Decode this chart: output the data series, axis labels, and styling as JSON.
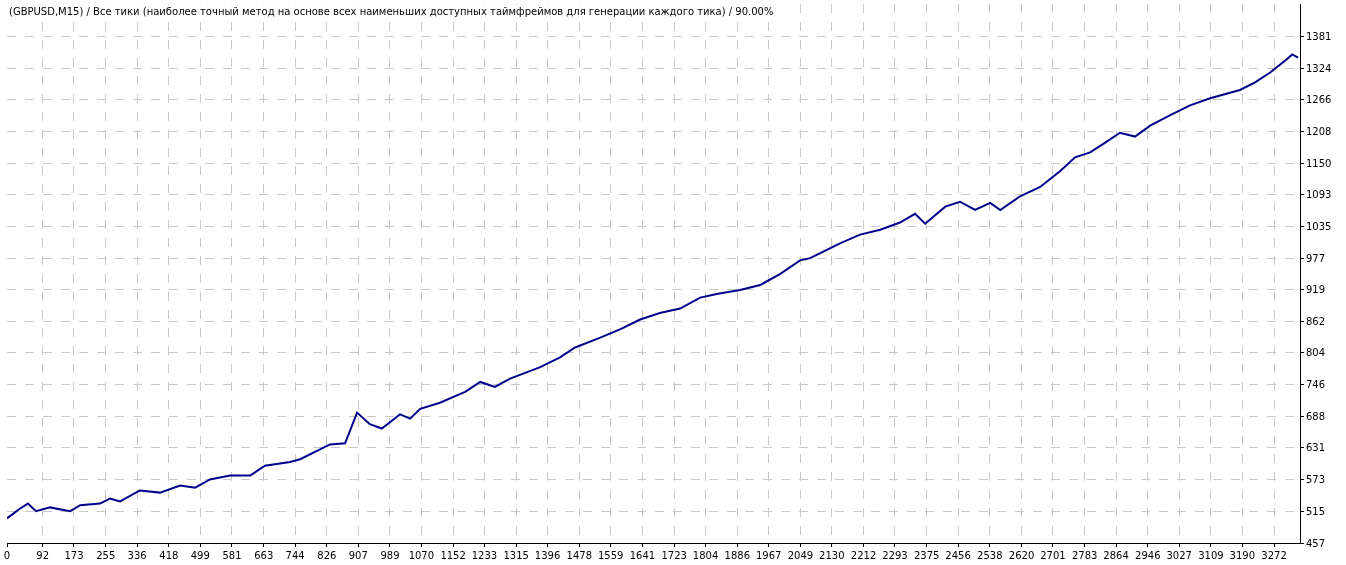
{
  "chart_data": {
    "type": "line",
    "title": "(GBPUSD,M15) / Все тики (наиболее точный метод на основе всех наименьших доступных таймфреймов для генерации каждого тика) / 90.00%",
    "x": [
      0,
      34,
      54,
      75,
      111,
      163,
      189,
      240,
      266,
      292,
      343,
      395,
      447,
      486,
      524,
      576,
      628,
      666,
      731,
      757,
      834,
      873,
      904,
      937,
      968,
      1015,
      1041,
      1067,
      1118,
      1183,
      1222,
      1260,
      1299,
      1377,
      1428,
      1467,
      1532,
      1583,
      1635,
      1686,
      1738,
      1790,
      1836,
      1893,
      1945,
      1996,
      2048,
      2074,
      2151,
      2203,
      2255,
      2306,
      2345,
      2371,
      2423,
      2461,
      2500,
      2539,
      2565,
      2616,
      2668,
      2720,
      2758,
      2797,
      2836,
      2874,
      2913,
      2952,
      3004,
      3055,
      3107,
      3184,
      3223,
      3262,
      3301,
      3319,
      3334
    ],
    "series": [
      {
        "color": "#00008b",
        "values": [
          502,
          520,
          529,
          515,
          522,
          515,
          526,
          529,
          538,
          533,
          553,
          549,
          562,
          558,
          573,
          580,
          580,
          598,
          605,
          610,
          637,
          639,
          695,
          674,
          666,
          692,
          684,
          702,
          713,
          733,
          751,
          742,
          757,
          778,
          796,
          814,
          832,
          847,
          865,
          877,
          885,
          905,
          912,
          919,
          928,
          948,
          973,
          977,
          1004,
          1020,
          1029,
          1042,
          1058,
          1040,
          1071,
          1080,
          1065,
          1078,
          1065,
          1090,
          1107,
          1136,
          1161,
          1170,
          1188,
          1206,
          1199,
          1219,
          1238,
          1256,
          1269,
          1284,
          1298,
          1316,
          1338,
          1349,
          1343
        ]
      }
    ],
    "xlim": [
      0,
      3339
    ],
    "xticks": [
      0,
      92,
      173,
      255,
      336,
      418,
      499,
      581,
      663,
      744,
      826,
      907,
      989,
      1070,
      1152,
      1233,
      1315,
      1396,
      1478,
      1559,
      1641,
      1723,
      1804,
      1886,
      1967,
      2049,
      2130,
      2212,
      2293,
      2375,
      2456,
      2538,
      2620,
      2701,
      2783,
      2864,
      2946,
      3027,
      3109,
      3190,
      3272
    ],
    "ylim": [
      457,
      1441
    ],
    "yticks": [
      457,
      515,
      573,
      631,
      688,
      746,
      804,
      862,
      919,
      977,
      1035,
      1093,
      1150,
      1208,
      1266,
      1324,
      1381
    ],
    "grid": true,
    "line_style": "solid",
    "marker": "none"
  }
}
